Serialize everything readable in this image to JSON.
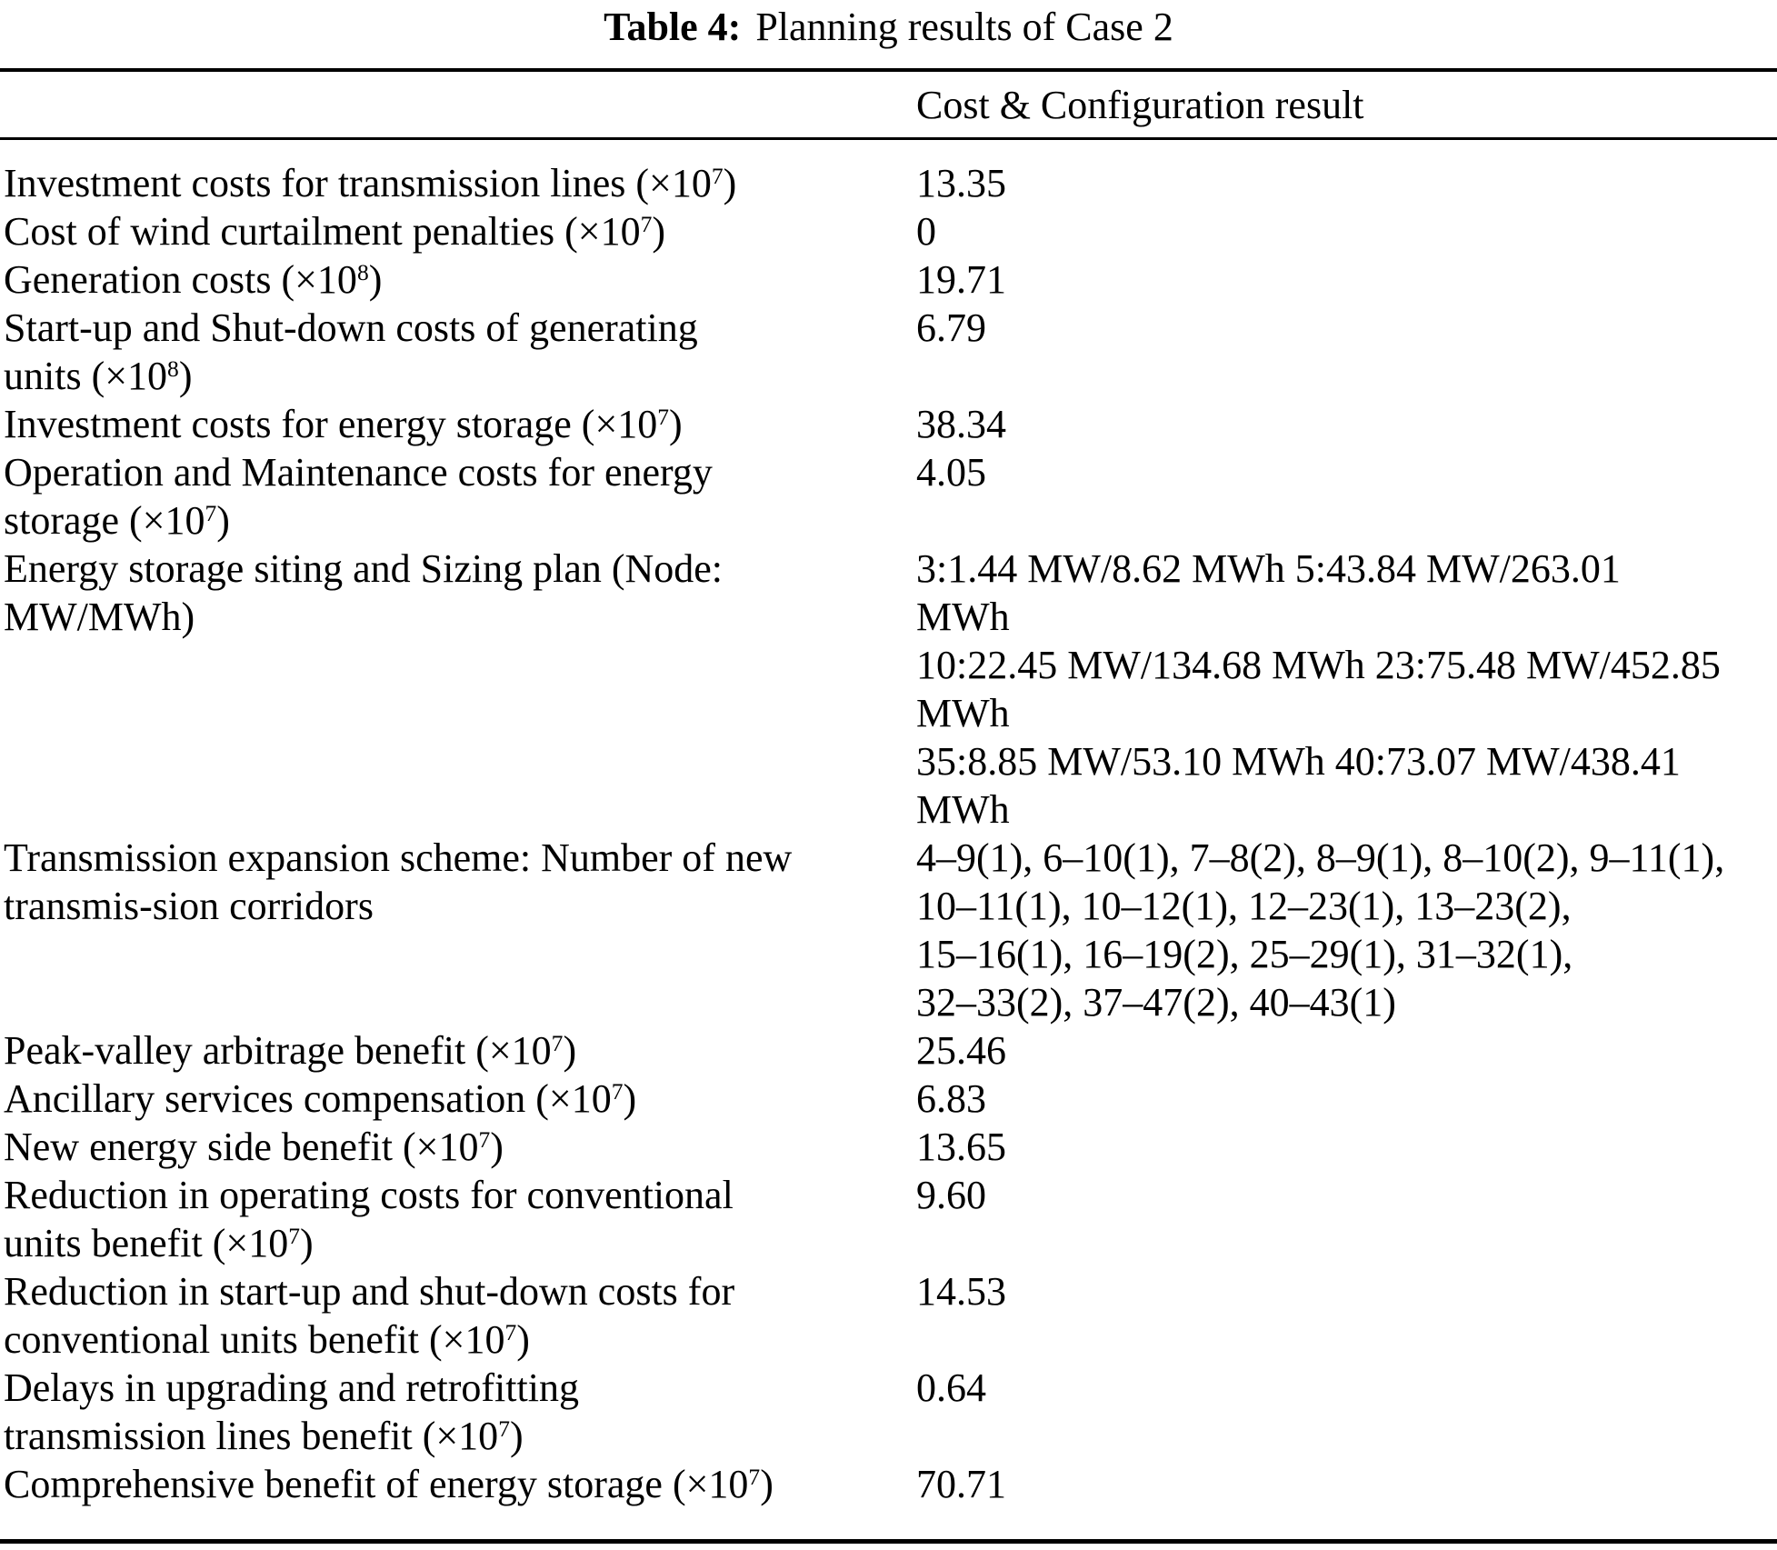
{
  "title": {
    "label": "Table 4:",
    "text": "Planning results of Case 2"
  },
  "table": {
    "header": {
      "label_col": "",
      "value_col": "Cost & Configuration result"
    },
    "rows": [
      {
        "label": "Investment costs for transmission lines (×10^7)",
        "value": "13.35"
      },
      {
        "label": "Cost of wind curtailment penalties (×10^7)",
        "value": "0"
      },
      {
        "label": "Generation costs (×10^8)",
        "value": "19.71"
      },
      {
        "label": "Start-up and Shut-down costs of generating\nunits (×10^8)",
        "value": "6.79"
      },
      {
        "label": "Investment costs for energy storage (×10^7)",
        "value": "38.34"
      },
      {
        "label": "Operation and Maintenance costs for energy\nstorage (×10^7)",
        "value": "4.05"
      },
      {
        "label": "Energy storage siting and Sizing plan (Node:\nMW/MWh)",
        "value": "3:1.44 MW/8.62 MWh 5:43.84 MW/263.01\nMWh\n10:22.45 MW/134.68 MWh 23:75.48 MW/452.85\nMWh\n35:8.85 MW/53.10 MWh 40:73.07 MW/438.41\nMWh"
      },
      {
        "label": "Transmission expansion scheme: Number of new\ntransmis-sion corridors",
        "value": "4–9(1), 6–10(1), 7–8(2), 8–9(1), 8–10(2), 9–11(1),\n10–11(1), 10–12(1), 12–23(1), 13–23(2),\n15–16(1), 16–19(2), 25–29(1), 31–32(1),\n32–33(2), 37–47(2), 40–43(1)"
      },
      {
        "label": "Peak-valley arbitrage benefit (×10^7)",
        "value": "25.46"
      },
      {
        "label": "Ancillary services compensation (×10^7)",
        "value": "6.83"
      },
      {
        "label": "New energy side benefit (×10^7)",
        "value": "13.65"
      },
      {
        "label": "Reduction in operating costs for conventional\nunits benefit (×10^7)",
        "value": "9.60"
      },
      {
        "label": "Reduction in start-up and shut-down costs for\nconventional units benefit (×10^7)",
        "value": "14.53"
      },
      {
        "label": "Delays in upgrading and retrofitting\ntransmission lines benefit (×10^7)",
        "value": "0.64"
      },
      {
        "label": "Comprehensive benefit of energy storage (×10^7)",
        "value": "70.71"
      }
    ]
  }
}
